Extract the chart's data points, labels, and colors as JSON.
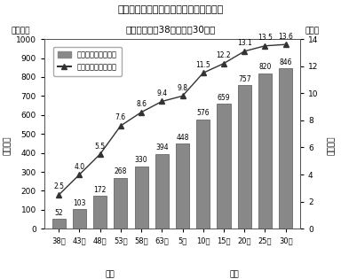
{
  "title_line1": "図２－１　空き家数及び空き家率の推移",
  "title_line2": "－全国（昭和38年～平成30年）",
  "x_labels": [
    "38年",
    "43年",
    "48年",
    "53年",
    "58年",
    "63年",
    "5年",
    "10年",
    "15年",
    "20年",
    "25年",
    "30年"
  ],
  "bar_values": [
    52,
    103,
    172,
    268,
    330,
    394,
    448,
    576,
    659,
    757,
    820,
    846
  ],
  "line_values": [
    2.5,
    4.0,
    5.5,
    7.6,
    8.6,
    9.4,
    9.8,
    11.5,
    12.2,
    13.1,
    13.5,
    13.6
  ],
  "bar_color": "#888888",
  "line_color": "#333333",
  "bar_label": "空き家数（左目盛）",
  "line_label": "空き家率（右目盛）",
  "yleft_unit": "（万戸）",
  "yright_unit": "（％）",
  "left_axis_vertical": "空き家数",
  "right_axis_vertical": "空き家率",
  "showa_label": "昭和",
  "heisei_label": "平成30年",
  "heisei_short": "平成30年",
  "era_showa": "昭和",
  "era_heisei": "平成",
  "yleft_max": 1000,
  "yleft_min": 0,
  "yright_max": 14,
  "yright_min": 0,
  "background_color": "#ffffff"
}
